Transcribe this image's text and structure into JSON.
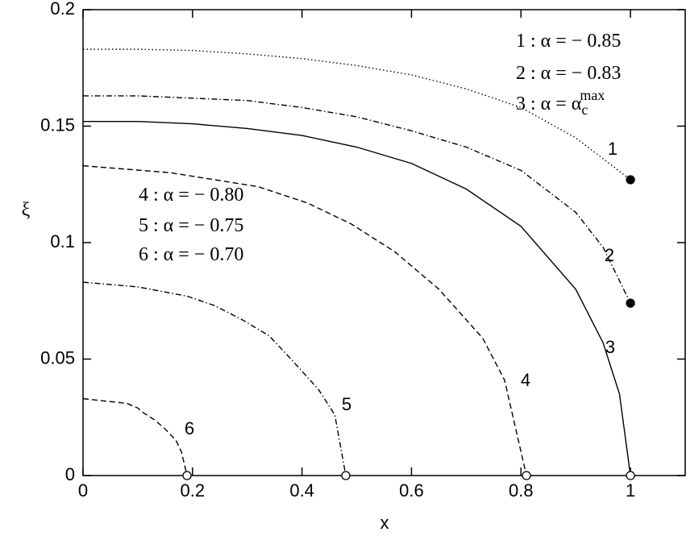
{
  "chart_data": {
    "type": "line",
    "xlabel": "x",
    "ylabel": "ξ",
    "xlim": [
      0,
      1.1
    ],
    "ylim": [
      0,
      0.2
    ],
    "xticks": [
      0,
      0.2,
      0.4,
      0.6,
      0.8,
      1
    ],
    "yticks": [
      0,
      0.05,
      0.1,
      0.15,
      0.2
    ],
    "series": [
      {
        "name": "1 : α = − 0.85",
        "label": "1",
        "color": "#000000",
        "dash": "dotted",
        "end_marker": "filled",
        "x": [
          0,
          0.1,
          0.2,
          0.3,
          0.4,
          0.5,
          0.6,
          0.7,
          0.8,
          0.9,
          1
        ],
        "values": [
          0.183,
          0.183,
          0.1825,
          0.181,
          0.179,
          0.176,
          0.172,
          0.166,
          0.158,
          0.145,
          0.127
        ]
      },
      {
        "name": "2 : α = − 0.83",
        "label": "2",
        "color": "#000000",
        "dash": "dashdot",
        "end_marker": "filled",
        "x": [
          0,
          0.1,
          0.2,
          0.3,
          0.4,
          0.5,
          0.6,
          0.7,
          0.8,
          0.9,
          0.95,
          1
        ],
        "values": [
          0.163,
          0.163,
          0.162,
          0.161,
          0.158,
          0.154,
          0.148,
          0.141,
          0.131,
          0.113,
          0.098,
          0.074
        ]
      },
      {
        "name": "3 : α = α",
        "name_sub": "c",
        "name_sup": "max",
        "label": "3",
        "color": "#000000",
        "dash": "solid",
        "end_marker": "open",
        "x": [
          0,
          0.1,
          0.2,
          0.3,
          0.4,
          0.5,
          0.6,
          0.7,
          0.8,
          0.9,
          0.95,
          0.98,
          1
        ],
        "values": [
          0.152,
          0.152,
          0.151,
          0.149,
          0.146,
          0.141,
          0.134,
          0.123,
          0.107,
          0.08,
          0.057,
          0.035,
          0
        ]
      },
      {
        "name": "4 : α = − 0.80",
        "label": "4",
        "color": "#000000",
        "dash": "dashed",
        "end_marker": "open",
        "x": [
          0,
          0.16,
          0.32,
          0.41,
          0.49,
          0.57,
          0.65,
          0.73,
          0.77,
          0.81
        ],
        "values": [
          0.133,
          0.13,
          0.124,
          0.117,
          0.108,
          0.096,
          0.08,
          0.059,
          0.041,
          0
        ]
      },
      {
        "name": "5 : α = − 0.75",
        "label": "5",
        "color": "#000000",
        "dash": "dashdot",
        "end_marker": "open",
        "x": [
          0,
          0.1,
          0.19,
          0.24,
          0.29,
          0.34,
          0.38,
          0.43,
          0.46,
          0.48
        ],
        "values": [
          0.083,
          0.081,
          0.077,
          0.073,
          0.067,
          0.06,
          0.05,
          0.037,
          0.026,
          0
        ]
      },
      {
        "name": "6 : α = − 0.70",
        "label": "6",
        "color": "#000000",
        "dash": "dashed",
        "end_marker": "open",
        "x": [
          0,
          0.04,
          0.08,
          0.1,
          0.11,
          0.13,
          0.15,
          0.17,
          0.18,
          0.19
        ],
        "values": [
          0.033,
          0.032,
          0.031,
          0.029,
          0.027,
          0.024,
          0.02,
          0.015,
          0.01,
          0
        ]
      }
    ]
  }
}
